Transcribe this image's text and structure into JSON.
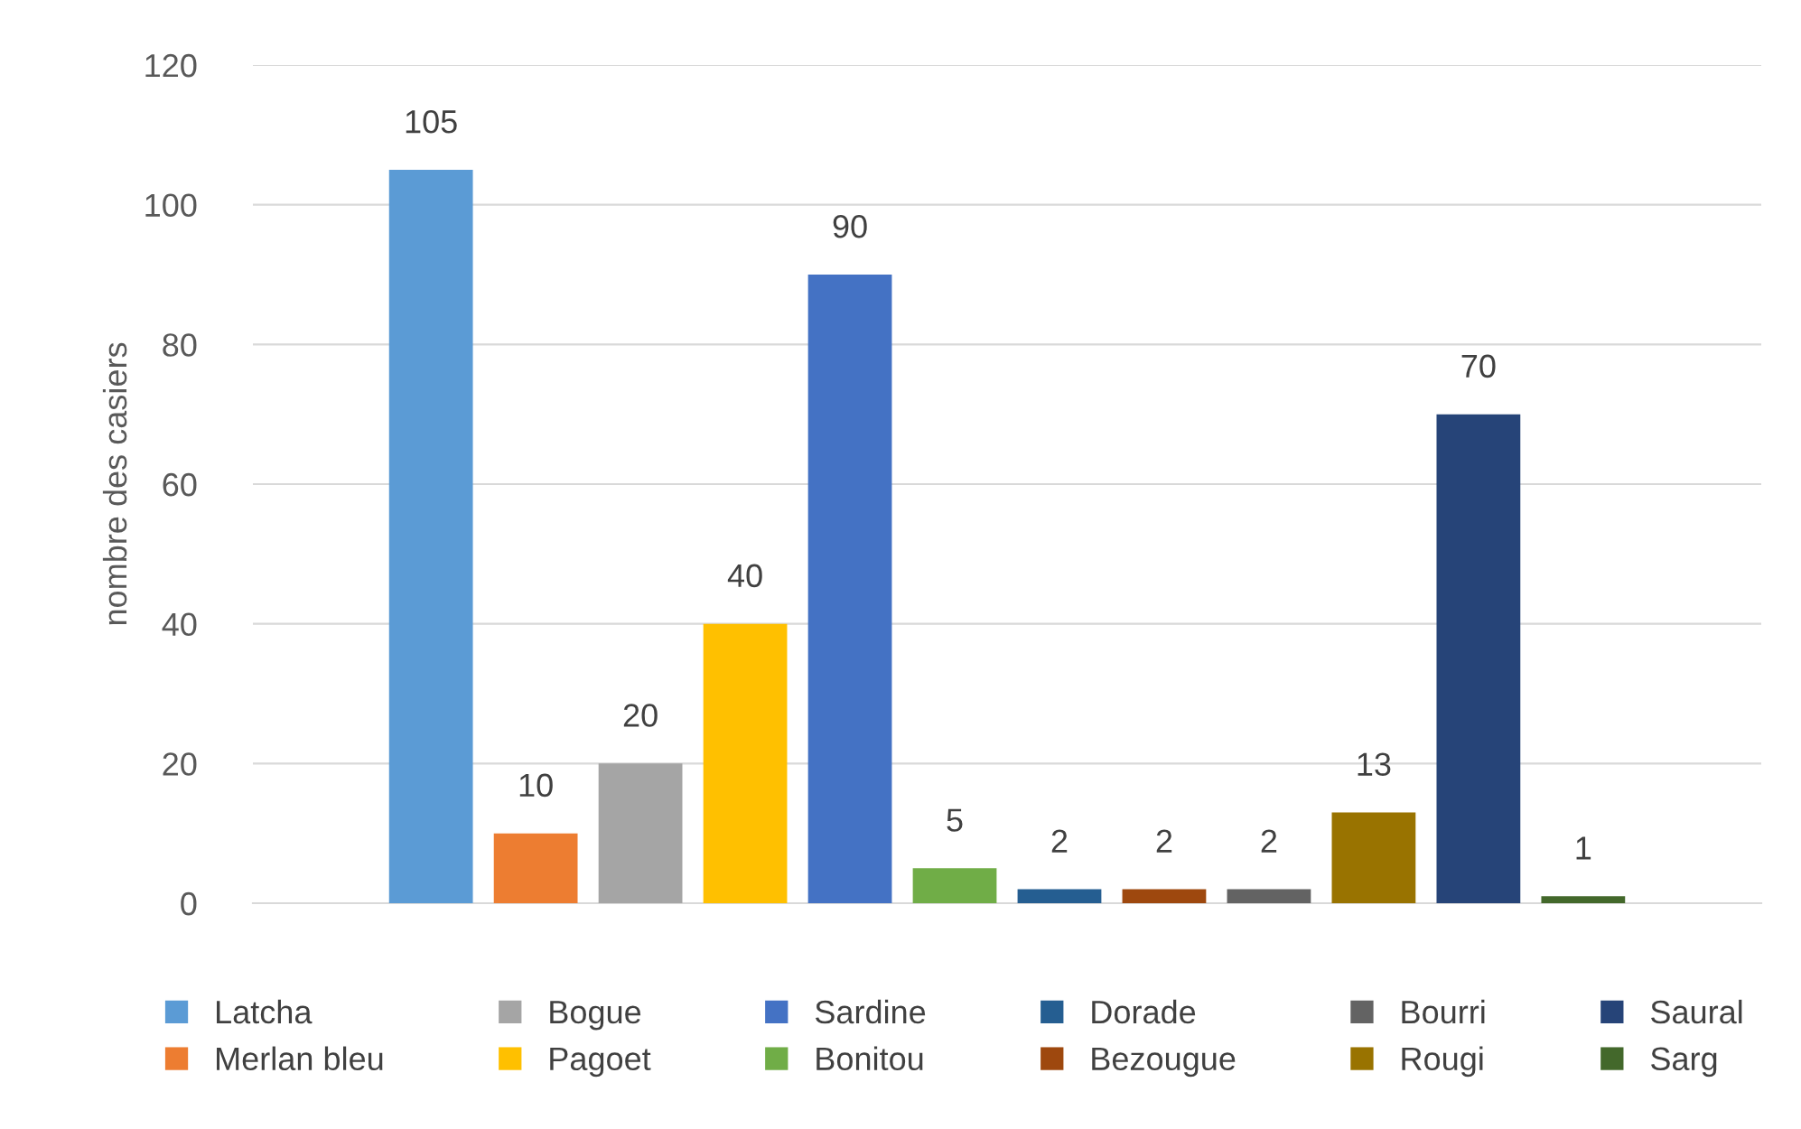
{
  "chart_data": {
    "type": "bar",
    "ylabel": "nombre des casiers",
    "categories": [
      null
    ],
    "series": [
      {
        "name": "Latcha",
        "color": "#5b9bd5",
        "values": [
          105
        ]
      },
      {
        "name": "Merlan bleu",
        "color": "#ed7d31",
        "values": [
          10
        ]
      },
      {
        "name": "Bogue",
        "color": "#a5a5a5",
        "values": [
          20
        ]
      },
      {
        "name": "Pagoet",
        "color": "#ffc000",
        "values": [
          40
        ]
      },
      {
        "name": "Sardine",
        "color": "#4472c4",
        "values": [
          90
        ]
      },
      {
        "name": "Bonitou",
        "color": "#70ad47",
        "values": [
          5
        ]
      },
      {
        "name": "Dorade",
        "color": "#255e91",
        "values": [
          2
        ]
      },
      {
        "name": "Bezougue",
        "color": "#9e480e",
        "values": [
          2
        ]
      },
      {
        "name": "Bourri",
        "color": "#636363",
        "values": [
          2
        ]
      },
      {
        "name": "Rougi",
        "color": "#997300",
        "values": [
          13
        ]
      },
      {
        "name": "Saural",
        "color": "#264478",
        "values": [
          70
        ]
      },
      {
        "name": "Sarg",
        "color": "#43682b",
        "values": [
          1
        ]
      }
    ],
    "ylim": [
      0,
      120
    ],
    "yticks": [
      0,
      20,
      40,
      60,
      80,
      100,
      120
    ],
    "grid": "y",
    "legend": "bottom",
    "data_labels": true
  }
}
